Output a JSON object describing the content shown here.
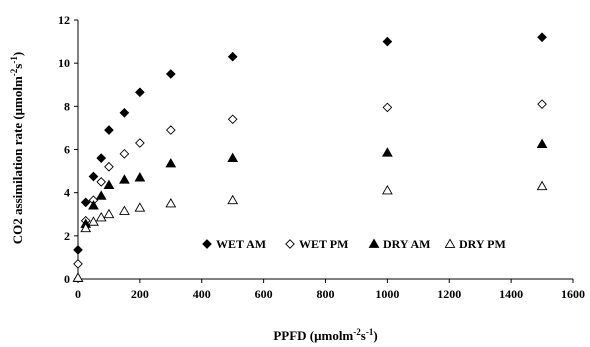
{
  "chart_data": {
    "type": "scatter",
    "xlabel": {
      "main": "PPFD (μmolm",
      "sup1": "-2",
      "mid": "s",
      "sup2": "-1",
      "end": ")"
    },
    "ylabel": {
      "main": "CO2 assimilation rate (μmolm",
      "sup1": "-2",
      "mid": "s",
      "sup2": "-1",
      "end": ")"
    },
    "xlim": [
      0,
      1600
    ],
    "ylim": [
      0,
      12
    ],
    "xticks": [
      "0",
      "200",
      "400",
      "600",
      "800",
      "1000",
      "1200",
      "1400",
      "1600"
    ],
    "yticks": [
      "0",
      "2",
      "4",
      "6",
      "8",
      "10",
      "12"
    ],
    "grid": false,
    "legend_position": "bottom-right inside",
    "series": [
      {
        "name": "WET AM",
        "marker": "filled-diamond",
        "x": [
          0,
          25,
          50,
          75,
          100,
          150,
          200,
          300,
          500,
          1000,
          1500
        ],
        "y": [
          1.35,
          3.55,
          4.75,
          5.6,
          6.9,
          7.7,
          8.65,
          9.5,
          10.3,
          11.0,
          11.2
        ]
      },
      {
        "name": "WET PM",
        "marker": "open-diamond",
        "x": [
          0,
          25,
          50,
          75,
          100,
          150,
          200,
          300,
          500,
          1000,
          1500
        ],
        "y": [
          0.7,
          2.7,
          3.65,
          4.5,
          5.2,
          5.8,
          6.3,
          6.9,
          7.4,
          7.95,
          8.1
        ]
      },
      {
        "name": "DRY AM",
        "marker": "filled-triangle",
        "x": [
          0,
          25,
          50,
          75,
          100,
          150,
          200,
          300,
          500,
          1000,
          1500
        ],
        "y": [
          0.05,
          2.55,
          3.4,
          3.85,
          4.35,
          4.6,
          4.7,
          5.35,
          5.6,
          5.85,
          6.25
        ]
      },
      {
        "name": "DRY PM",
        "marker": "open-triangle",
        "x": [
          0,
          25,
          50,
          75,
          100,
          150,
          200,
          300,
          500,
          1000,
          1500
        ],
        "y": [
          0.05,
          2.35,
          2.65,
          2.85,
          3.0,
          3.15,
          3.3,
          3.5,
          3.65,
          4.1,
          4.3
        ]
      }
    ]
  }
}
